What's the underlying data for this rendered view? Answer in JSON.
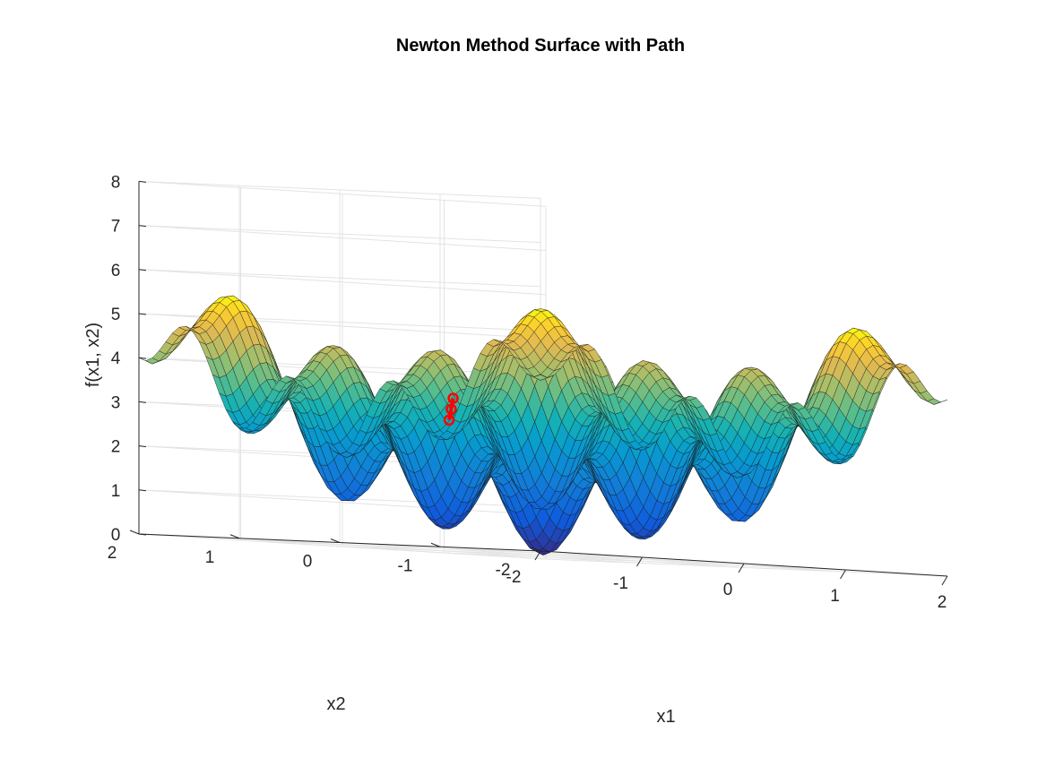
{
  "chart_data": {
    "type": "surface",
    "title": "Newton Method Surface with Path",
    "xlabel": "x1",
    "ylabel": "x2",
    "zlabel": "f(x1, x2)",
    "xlim": [
      -2,
      2
    ],
    "ylim": [
      -2,
      2
    ],
    "zlim": [
      0,
      8
    ],
    "xticks": [
      -2,
      -1,
      0,
      1,
      2
    ],
    "yticks": [
      -2,
      -1,
      0,
      1,
      2
    ],
    "zticks": [
      0,
      1,
      2,
      3,
      4,
      5,
      6,
      7,
      8
    ],
    "xtick_labels": [
      "-2",
      "-1",
      "0",
      "1",
      "2"
    ],
    "ytick_labels": [
      "-2",
      "-1",
      "0",
      "1",
      "2"
    ],
    "ztick_labels": [
      "0",
      "1",
      "2",
      "3",
      "4",
      "5",
      "6",
      "7",
      "8"
    ],
    "grid": true,
    "colormap": "parula",
    "surface_grid_points": 60,
    "path": {
      "color": "#ff0000",
      "points": [
        {
          "x1": -0.47,
          "x2": 0.42,
          "z": 3.45
        },
        {
          "x1": -0.48,
          "x2": 0.43,
          "z": 3.2
        },
        {
          "x1": -0.49,
          "x2": 0.44,
          "z": 2.95
        }
      ]
    }
  }
}
